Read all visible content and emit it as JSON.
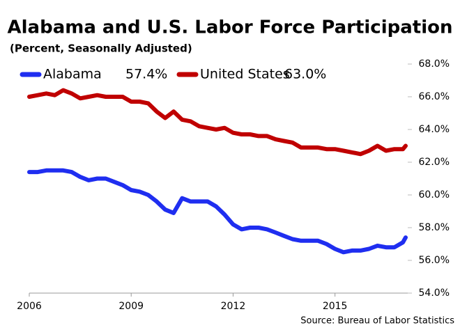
{
  "chart_data": {
    "type": "line",
    "title": "Alabama and U.S. Labor Force Participation",
    "subtitle": "(Percent, Seasonally Adjusted)",
    "source": "Source: Bureau of Labor Statistics",
    "x": [
      2006,
      2006.25,
      2006.5,
      2006.75,
      2007,
      2007.25,
      2007.5,
      2007.75,
      2008,
      2008.25,
      2008.5,
      2008.75,
      2009,
      2009.25,
      2009.5,
      2009.75,
      2010,
      2010.25,
      2010.5,
      2010.75,
      2011,
      2011.25,
      2011.5,
      2011.75,
      2012,
      2012.25,
      2012.5,
      2012.75,
      2013,
      2013.25,
      2013.5,
      2013.75,
      2014,
      2014.25,
      2014.5,
      2014.75,
      2015,
      2015.25,
      2015.5,
      2015.75,
      2016,
      2016.25,
      2016.5,
      2016.75,
      2017,
      2017.08
    ],
    "series": [
      {
        "name": "Alabama",
        "legend_value": "57.4%",
        "color": "#1f2ef0",
        "values": [
          61.4,
          61.4,
          61.5,
          61.5,
          61.5,
          61.4,
          61.1,
          60.9,
          61.0,
          61.0,
          60.8,
          60.6,
          60.3,
          60.2,
          60.0,
          59.6,
          59.1,
          58.9,
          59.8,
          59.6,
          59.6,
          59.6,
          59.3,
          58.8,
          58.2,
          57.9,
          58.0,
          58.0,
          57.9,
          57.7,
          57.5,
          57.3,
          57.2,
          57.2,
          57.2,
          57.0,
          56.7,
          56.5,
          56.6,
          56.6,
          56.7,
          56.9,
          56.8,
          56.8,
          57.1,
          57.4
        ]
      },
      {
        "name": "United States",
        "legend_value": "63.0%",
        "color": "#c00000",
        "values": [
          66.0,
          66.1,
          66.2,
          66.1,
          66.4,
          66.2,
          65.9,
          66.0,
          66.1,
          66.0,
          66.0,
          66.0,
          65.7,
          65.7,
          65.6,
          65.1,
          64.7,
          65.1,
          64.6,
          64.5,
          64.2,
          64.1,
          64.0,
          64.1,
          63.8,
          63.7,
          63.7,
          63.6,
          63.6,
          63.4,
          63.3,
          63.2,
          62.9,
          62.9,
          62.9,
          62.8,
          62.8,
          62.7,
          62.6,
          62.5,
          62.7,
          63.0,
          62.7,
          62.8,
          62.8,
          63.0
        ]
      }
    ],
    "xlim": [
      2006,
      2017.1
    ],
    "xticks": [
      2006,
      2009,
      2012,
      2015
    ],
    "ylim": [
      54,
      68
    ],
    "yticks": [
      {
        "value": 54,
        "label": "54.0%"
      },
      {
        "value": 56,
        "label": "56.0%"
      },
      {
        "value": 58,
        "label": "58.0%"
      },
      {
        "value": 60,
        "label": "60.0%"
      },
      {
        "value": 62,
        "label": "62.0%"
      },
      {
        "value": 64,
        "label": "64.0%"
      },
      {
        "value": 66,
        "label": "66.0%"
      },
      {
        "value": 68,
        "label": "68.0%"
      }
    ],
    "grid": false
  }
}
